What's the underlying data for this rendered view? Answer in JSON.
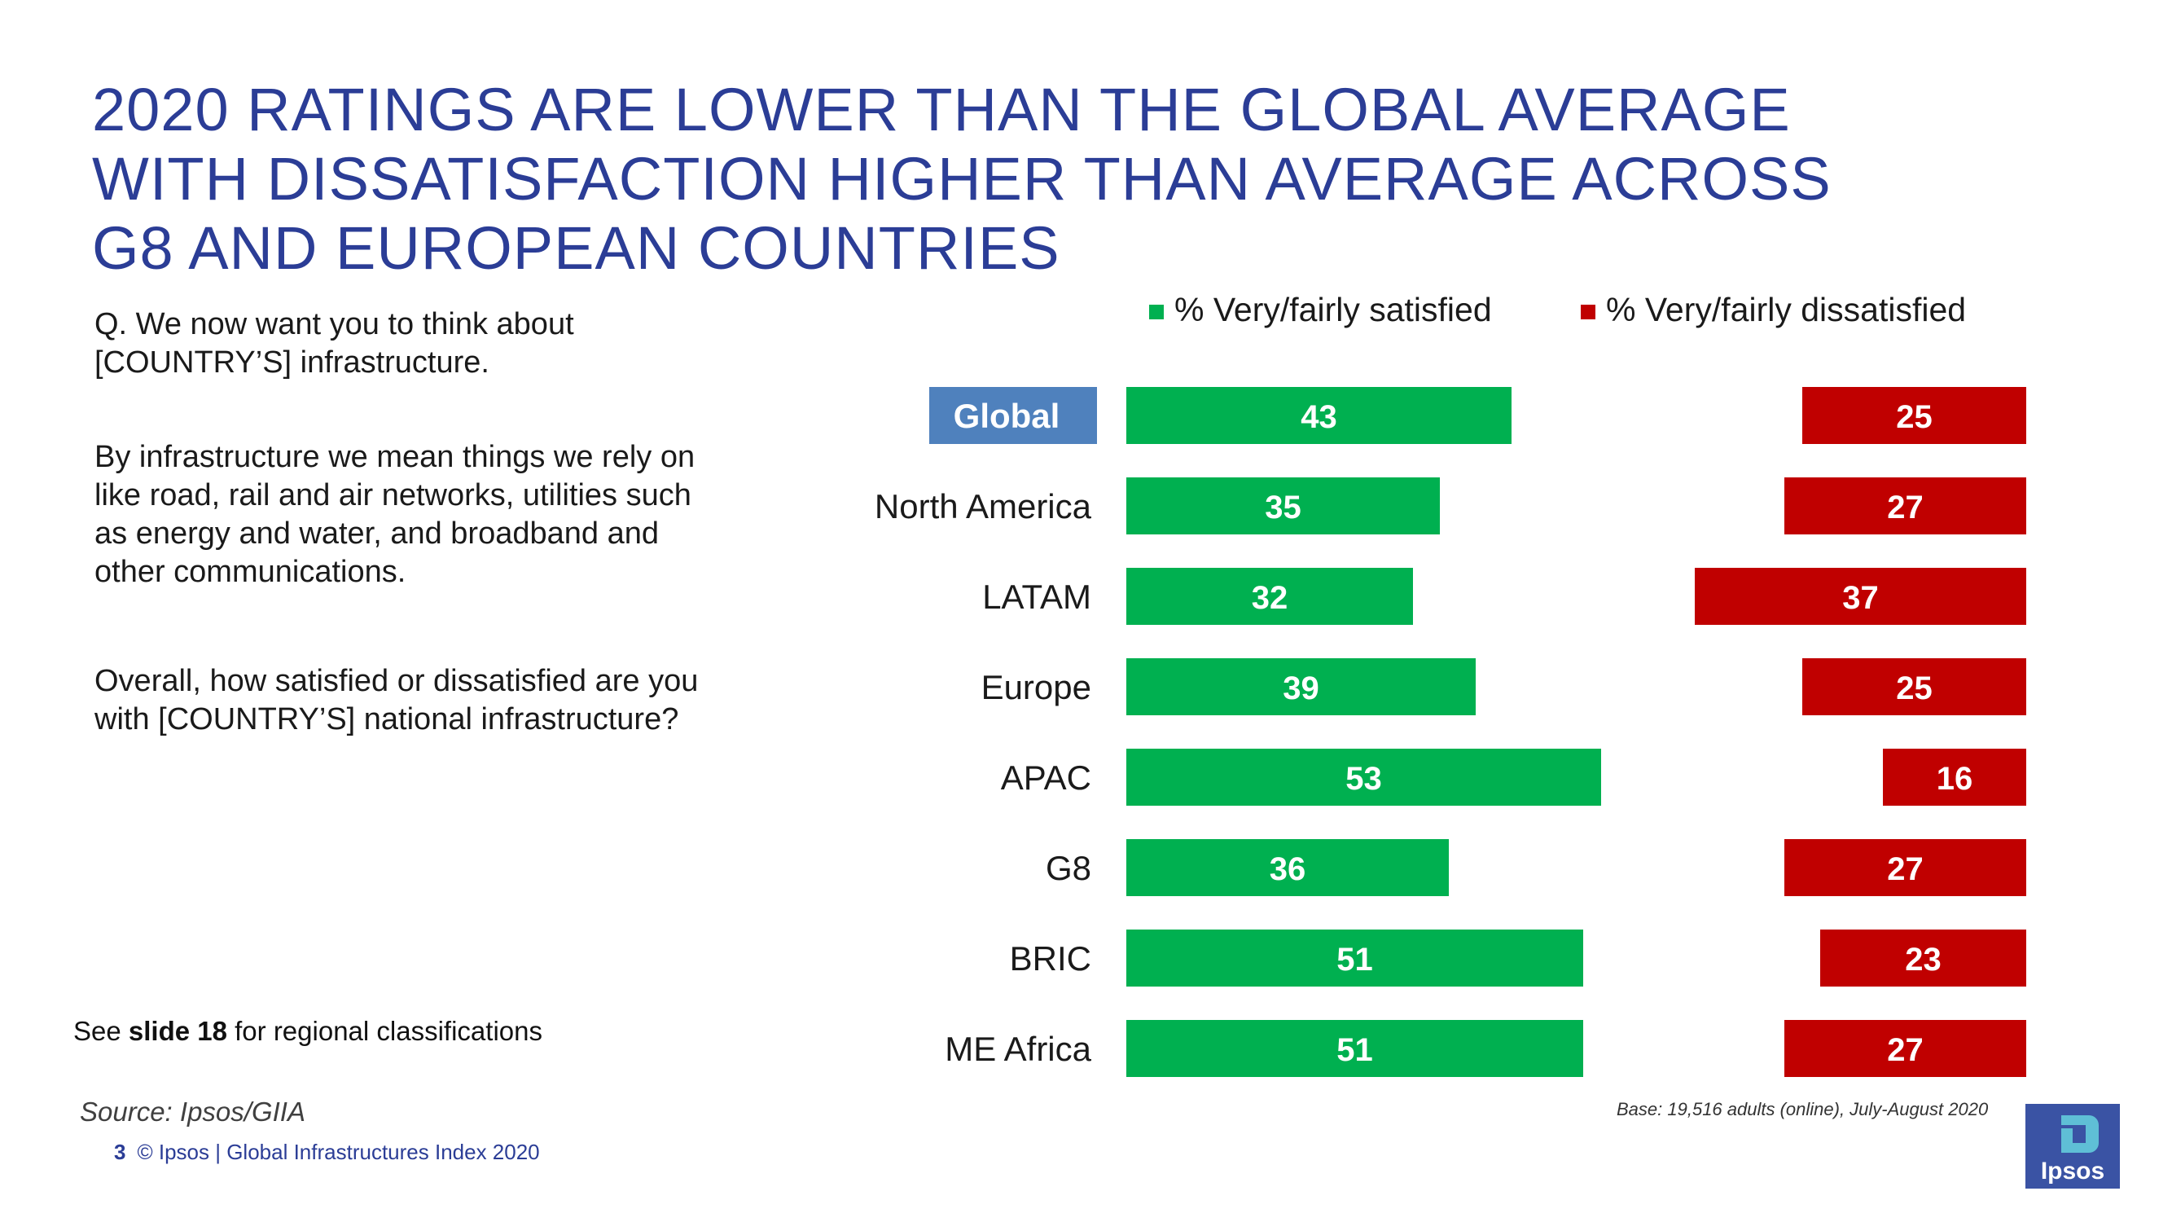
{
  "title_lines": [
    "2020 RATINGS ARE LOWER THAN THE GLOBAL AVERAGE",
    "WITH DISSATISFACTION HIGHER THAN AVERAGE ACROSS",
    "G8 AND EUROPEAN COUNTRIES"
  ],
  "question": {
    "intro": "Q. We now want you to think about [COUNTRY’S] infrastructure.",
    "definition": "By infrastructure we mean things we rely on like road, rail and air networks, utilities such as energy and water, and broadband and other communications.",
    "ask": "Overall, how satisfied or dissatisfied are you with [COUNTRY’S] national infrastructure?"
  },
  "see_note": {
    "prefix": "See ",
    "link": "slide 18",
    "suffix": " for regional classifications"
  },
  "source": "Source: Ipsos/GIIA",
  "footer": {
    "page_number": "3",
    "text": "© Ipsos | Global Infrastructures Index 2020"
  },
  "base_note": "Base: 19,516 adults (online), July-August 2020",
  "logo_text": "Ipsos",
  "colors": {
    "title": "#2b3d96",
    "satisfied": "#00b050",
    "dissatisfied": "#c00000",
    "highlight": "#4f81bd",
    "logo": "#3a53a4",
    "logo_accent": "#5fbfd6"
  },
  "chart_data": {
    "type": "bar",
    "orientation": "horizontal",
    "categories": [
      "Global",
      "North America",
      "LATAM",
      "Europe",
      "APAC",
      "G8",
      "BRIC",
      "ME Africa"
    ],
    "highlighted_category": "Global",
    "series": [
      {
        "name": "% Very/fairly satisfied",
        "values": [
          43,
          35,
          32,
          39,
          53,
          36,
          51,
          51
        ]
      },
      {
        "name": "% Very/fairly dissatisfied",
        "values": [
          25,
          27,
          37,
          25,
          16,
          27,
          23,
          27
        ]
      }
    ],
    "legend_position": "top",
    "data_labels": true,
    "grid": false
  }
}
